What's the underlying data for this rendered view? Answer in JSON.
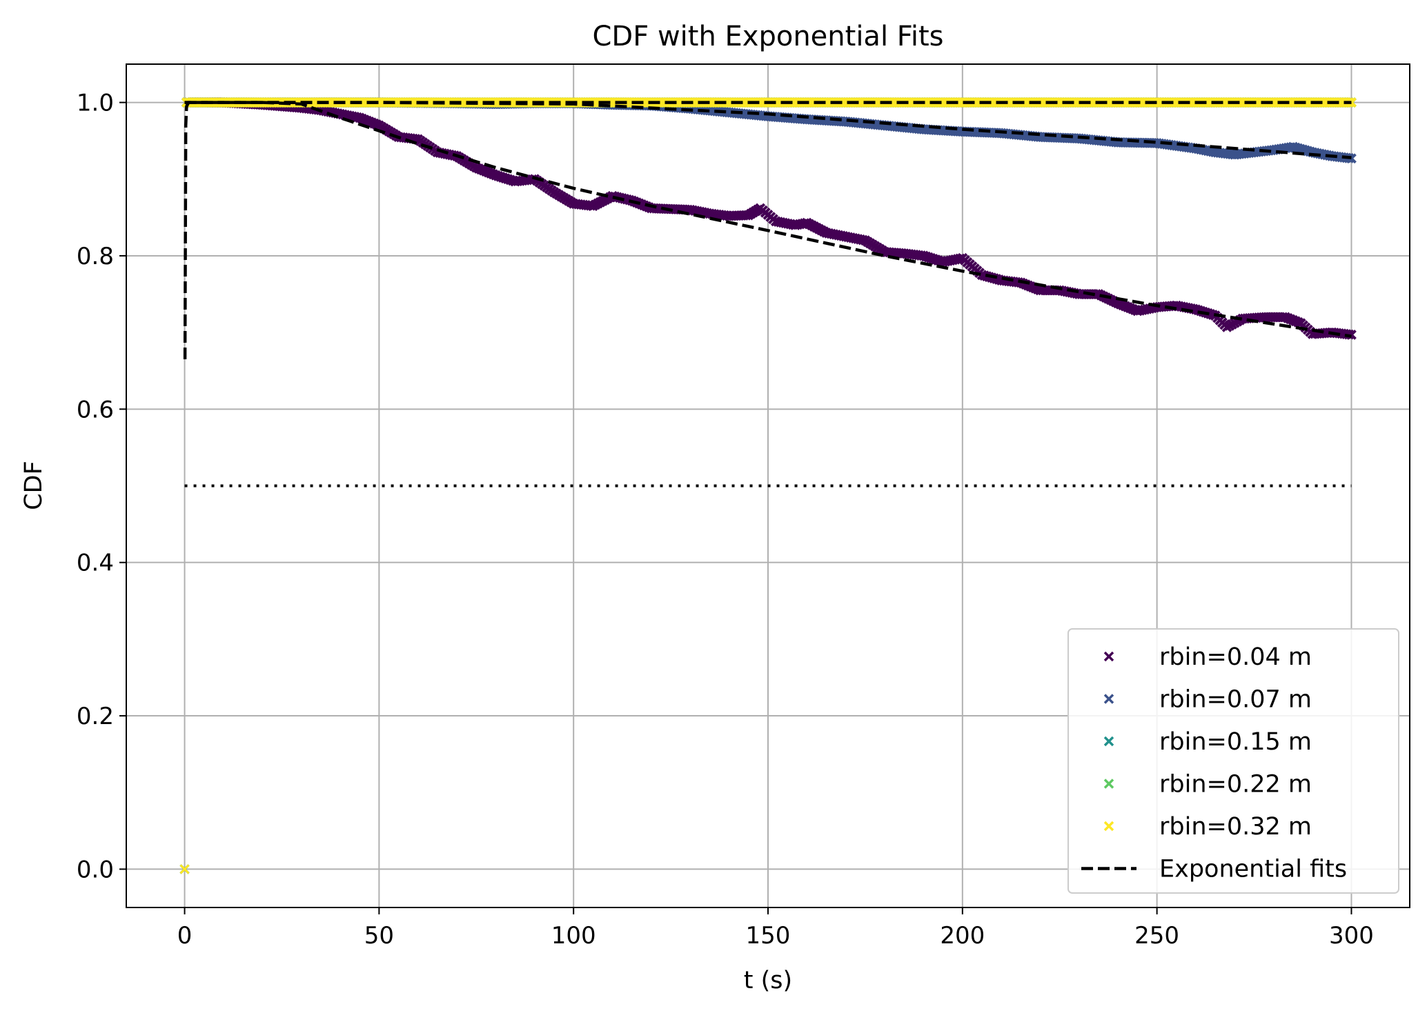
{
  "chart_data": {
    "type": "scatter",
    "title": "CDF with Exponential Fits",
    "xlabel": "t (s)",
    "ylabel": "CDF",
    "xlim": [
      -15,
      315
    ],
    "ylim": [
      -0.05,
      1.05
    ],
    "xticks": [
      0,
      50,
      100,
      150,
      200,
      250,
      300
    ],
    "yticks": [
      0.0,
      0.2,
      0.4,
      0.6,
      0.8,
      1.0
    ],
    "xtick_labels": [
      "0",
      "50",
      "100",
      "150",
      "200",
      "250",
      "300"
    ],
    "ytick_labels": [
      "0.0",
      "0.2",
      "0.4",
      "0.6",
      "0.8",
      "1.0"
    ],
    "grid": true,
    "legend_position": "bottom-right",
    "series": [
      {
        "name": "rbin=0.04 m",
        "color": "#440154",
        "marker": "x",
        "points": [
          [
            0,
            0.0
          ],
          [
            0.5,
            1.0
          ],
          [
            10,
            1.0
          ],
          [
            20,
            0.997
          ],
          [
            30,
            0.993
          ],
          [
            35,
            0.99
          ],
          [
            40,
            0.985
          ],
          [
            45,
            0.98
          ],
          [
            50,
            0.97
          ],
          [
            55,
            0.955
          ],
          [
            60,
            0.952
          ],
          [
            65,
            0.935
          ],
          [
            70,
            0.93
          ],
          [
            75,
            0.915
          ],
          [
            80,
            0.905
          ],
          [
            85,
            0.897
          ],
          [
            90,
            0.9
          ],
          [
            95,
            0.883
          ],
          [
            100,
            0.868
          ],
          [
            105,
            0.865
          ],
          [
            110,
            0.878
          ],
          [
            115,
            0.872
          ],
          [
            120,
            0.862
          ],
          [
            125,
            0.861
          ],
          [
            130,
            0.86
          ],
          [
            135,
            0.855
          ],
          [
            140,
            0.852
          ],
          [
            145,
            0.853
          ],
          [
            148,
            0.862
          ],
          [
            152,
            0.845
          ],
          [
            157,
            0.84
          ],
          [
            160,
            0.843
          ],
          [
            165,
            0.83
          ],
          [
            170,
            0.825
          ],
          [
            175,
            0.82
          ],
          [
            180,
            0.805
          ],
          [
            185,
            0.803
          ],
          [
            190,
            0.8
          ],
          [
            195,
            0.792
          ],
          [
            200,
            0.797
          ],
          [
            205,
            0.775
          ],
          [
            210,
            0.768
          ],
          [
            215,
            0.765
          ],
          [
            220,
            0.755
          ],
          [
            225,
            0.755
          ],
          [
            230,
            0.75
          ],
          [
            235,
            0.75
          ],
          [
            240,
            0.738
          ],
          [
            245,
            0.728
          ],
          [
            250,
            0.733
          ],
          [
            255,
            0.735
          ],
          [
            260,
            0.73
          ],
          [
            265,
            0.722
          ],
          [
            268,
            0.707
          ],
          [
            272,
            0.718
          ],
          [
            278,
            0.72
          ],
          [
            283,
            0.72
          ],
          [
            287,
            0.712
          ],
          [
            290,
            0.698
          ],
          [
            295,
            0.7
          ],
          [
            300,
            0.697
          ]
        ]
      },
      {
        "name": "rbin=0.07 m",
        "color": "#3b528b",
        "marker": "x",
        "points": [
          [
            0,
            0.0
          ],
          [
            0.5,
            1.0
          ],
          [
            50,
            1.0
          ],
          [
            70,
            0.999
          ],
          [
            80,
            0.998
          ],
          [
            90,
            0.999
          ],
          [
            100,
            0.999
          ],
          [
            110,
            0.997
          ],
          [
            120,
            0.996
          ],
          [
            130,
            0.992
          ],
          [
            140,
            0.987
          ],
          [
            150,
            0.982
          ],
          [
            160,
            0.978
          ],
          [
            170,
            0.975
          ],
          [
            180,
            0.97
          ],
          [
            190,
            0.965
          ],
          [
            200,
            0.962
          ],
          [
            210,
            0.96
          ],
          [
            220,
            0.955
          ],
          [
            230,
            0.953
          ],
          [
            240,
            0.948
          ],
          [
            250,
            0.947
          ],
          [
            260,
            0.94
          ],
          [
            265,
            0.935
          ],
          [
            270,
            0.932
          ],
          [
            275,
            0.935
          ],
          [
            280,
            0.938
          ],
          [
            285,
            0.942
          ],
          [
            290,
            0.935
          ],
          [
            295,
            0.93
          ],
          [
            300,
            0.927
          ]
        ]
      },
      {
        "name": "rbin=0.15 m",
        "color": "#21918c",
        "marker": "x",
        "points": [
          [
            0,
            0.0
          ],
          [
            0.5,
            1.0
          ],
          [
            100,
            1.0
          ],
          [
            200,
            1.0
          ],
          [
            300,
            1.0
          ]
        ]
      },
      {
        "name": "rbin=0.22 m",
        "color": "#5ec962",
        "marker": "x",
        "points": [
          [
            0,
            0.0
          ],
          [
            0.5,
            1.0
          ],
          [
            100,
            1.0
          ],
          [
            200,
            1.0
          ],
          [
            300,
            1.0
          ]
        ]
      },
      {
        "name": "rbin=0.32 m",
        "color": "#fde725",
        "marker": "x",
        "points": [
          [
            0,
            0.0
          ],
          [
            0.5,
            1.0
          ],
          [
            100,
            1.0
          ],
          [
            200,
            1.0
          ],
          [
            300,
            1.0
          ]
        ]
      }
    ],
    "fits": {
      "name": "Exponential fits",
      "color": "#000000",
      "style": "dashed",
      "lines": [
        [
          [
            0.1,
            0.665
          ],
          [
            0.3,
            0.97
          ],
          [
            0.5,
            0.995
          ],
          [
            1,
            1.0
          ],
          [
            20,
            1.0
          ],
          [
            30,
            0.998
          ],
          [
            40,
            0.98
          ],
          [
            60,
            0.946
          ],
          [
            80,
            0.915
          ],
          [
            100,
            0.888
          ],
          [
            120,
            0.865
          ],
          [
            150,
            0.833
          ],
          [
            180,
            0.8
          ],
          [
            200,
            0.78
          ],
          [
            250,
            0.735
          ],
          [
            300,
            0.695
          ]
        ],
        [
          [
            0,
            1.0
          ],
          [
            50,
            1.0
          ],
          [
            100,
            0.998
          ],
          [
            150,
            0.985
          ],
          [
            200,
            0.965
          ],
          [
            250,
            0.948
          ],
          [
            300,
            0.928
          ]
        ],
        [
          [
            0,
            1.0
          ],
          [
            300,
            1.0
          ]
        ]
      ]
    },
    "reference_line": {
      "y": 0.5,
      "x_range": [
        0,
        300
      ],
      "style": "dotted",
      "color": "#000000"
    }
  }
}
